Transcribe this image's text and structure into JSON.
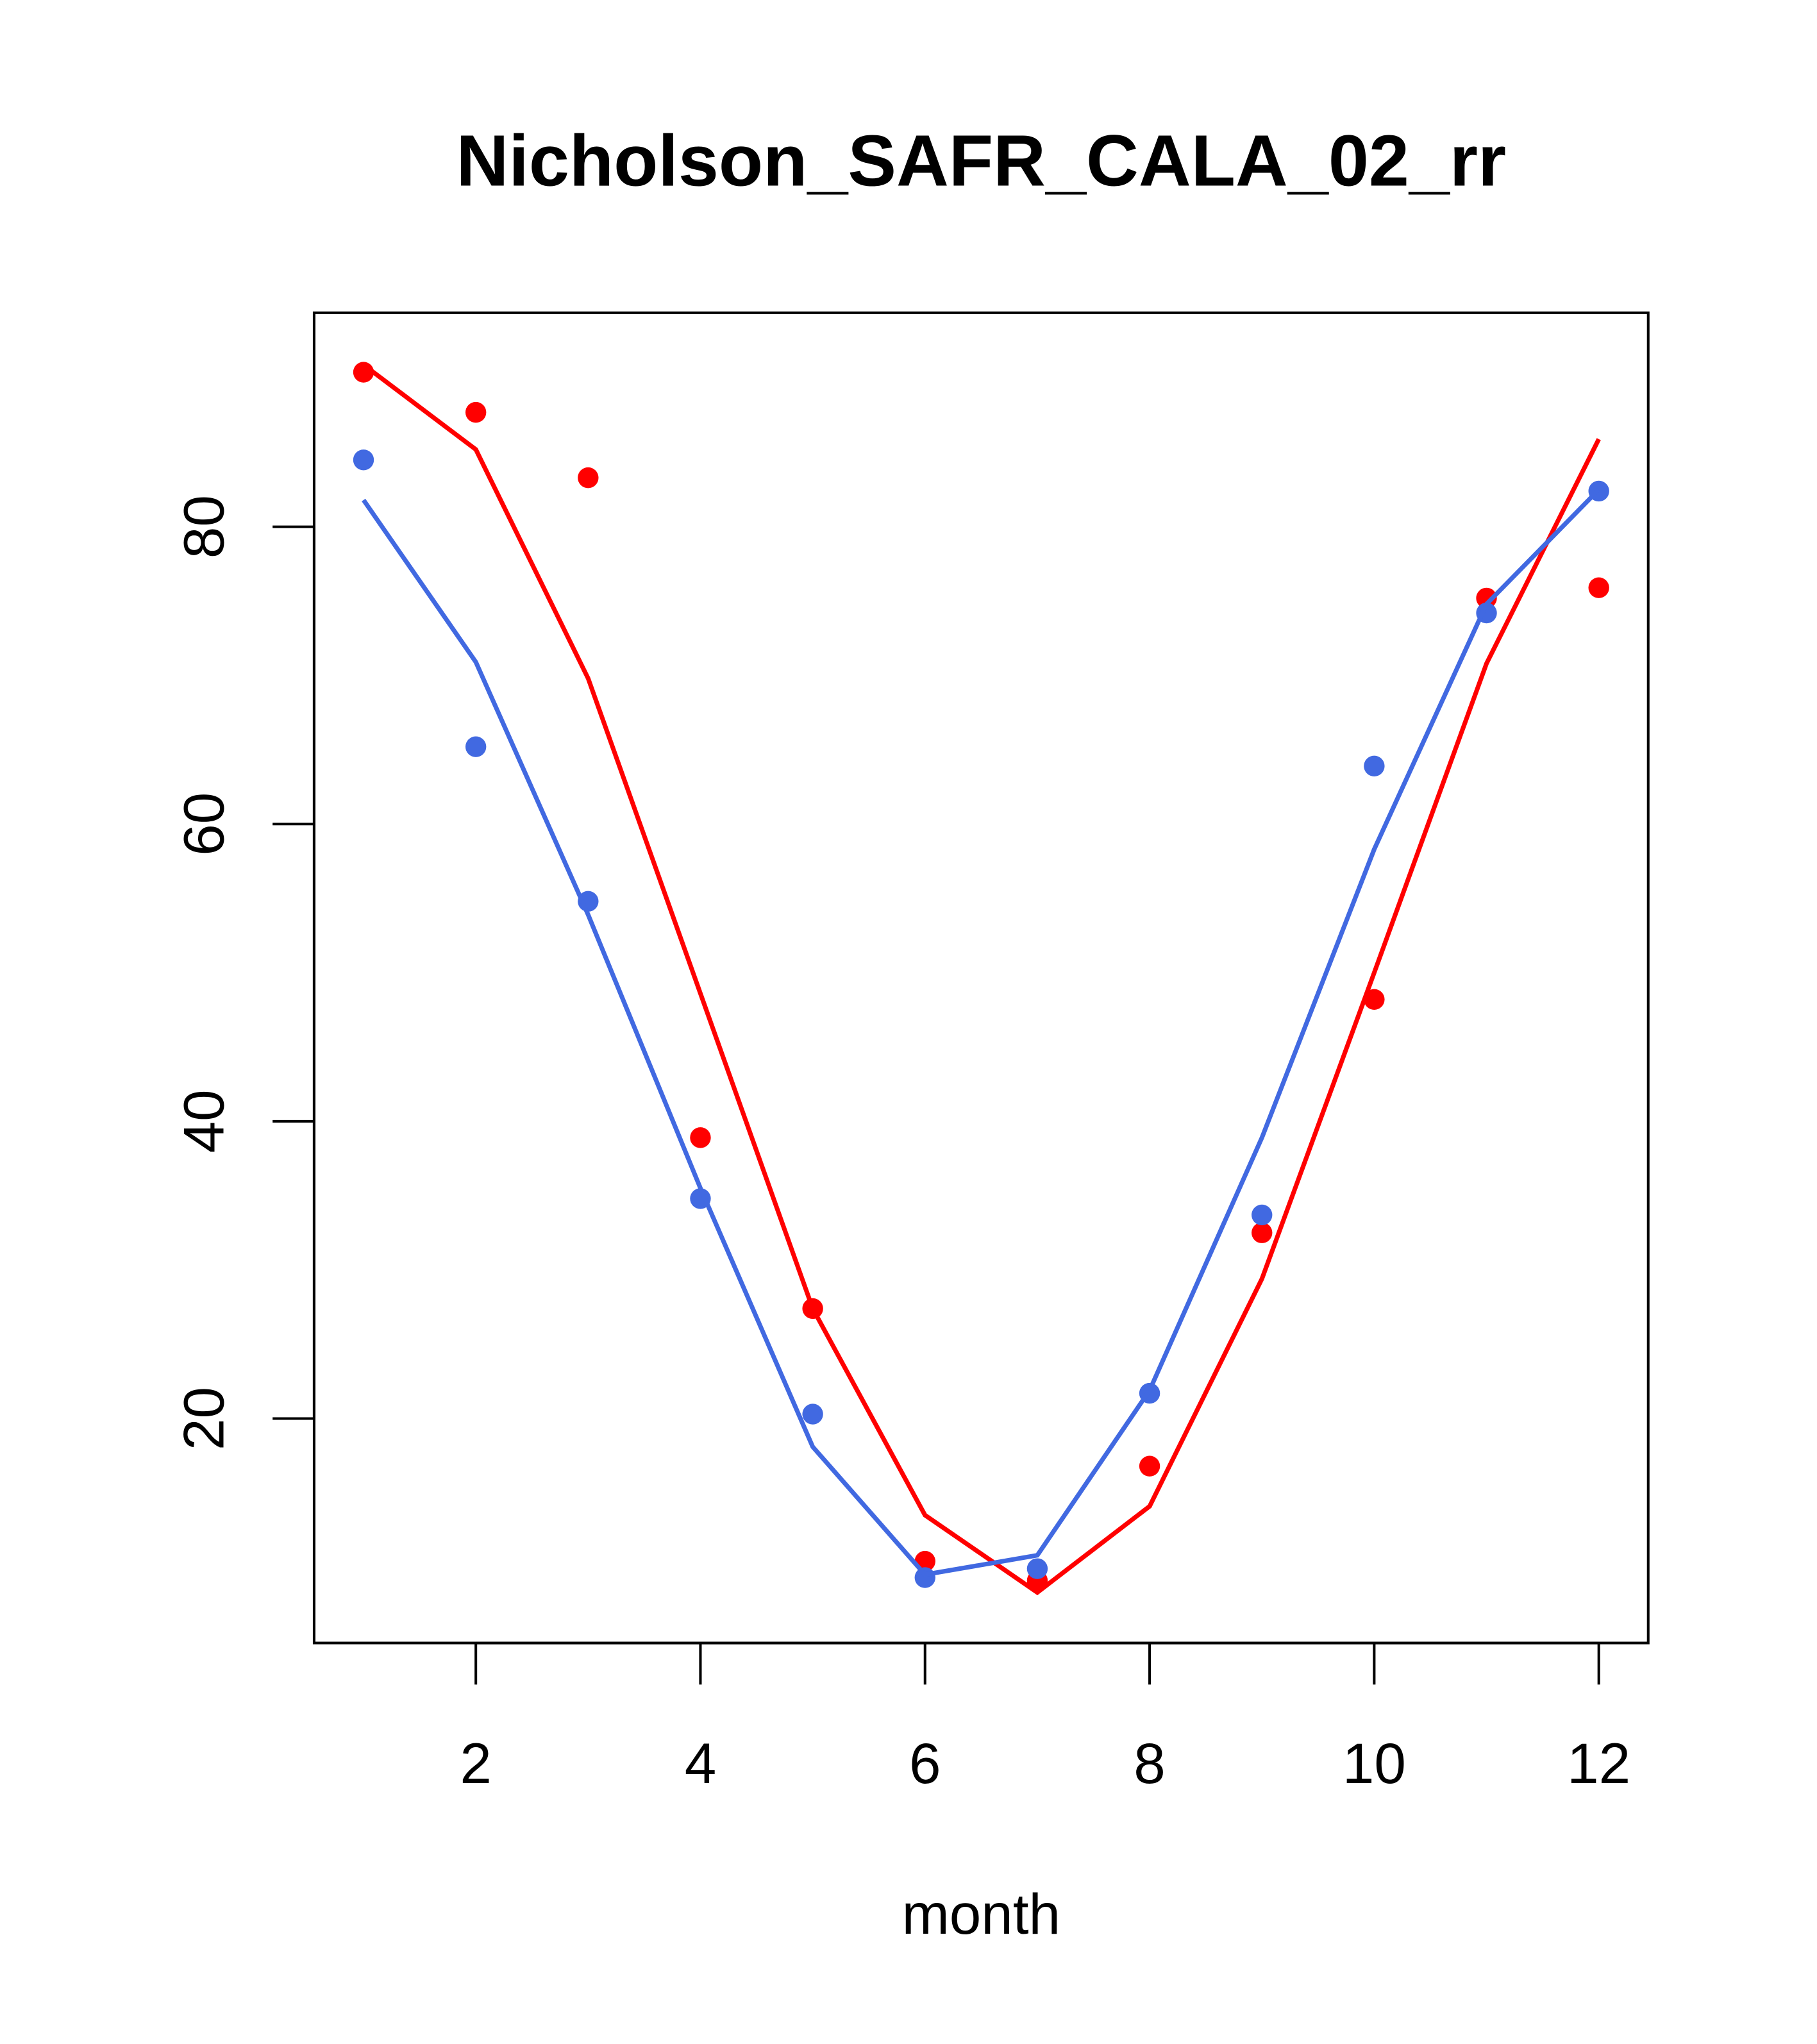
{
  "chart_data": {
    "type": "line",
    "title": "Nicholson_SAFR_CALA_02_rr",
    "xlabel": "month",
    "ylabel": "",
    "xlim": [
      0.56,
      12.44
    ],
    "ylim": [
      4.9,
      94.4
    ],
    "x_ticks": [
      2,
      4,
      6,
      8,
      10,
      12
    ],
    "y_ticks": [
      20,
      40,
      60,
      80
    ],
    "grid": false,
    "x": [
      1,
      2,
      3,
      4,
      5,
      6,
      7,
      8,
      9,
      10,
      11,
      12
    ],
    "series": [
      {
        "name": "red points",
        "kind": "points",
        "color": "#ff0000",
        "values": [
          90.4,
          87.7,
          83.3,
          38.9,
          27.4,
          10.4,
          9.1,
          16.8,
          32.5,
          48.2,
          75.2,
          75.9
        ]
      },
      {
        "name": "red line",
        "kind": "line",
        "color": "#ff0000",
        "values": [
          90.9,
          85.2,
          69.8,
          48.6,
          27.4,
          13.5,
          8.3,
          14.1,
          29.4,
          50.0,
          70.8,
          85.9
        ]
      },
      {
        "name": "blue points",
        "kind": "points",
        "color": "#4169e1",
        "values": [
          84.5,
          65.2,
          54.8,
          34.8,
          20.3,
          9.3,
          9.9,
          21.7,
          33.7,
          63.9,
          74.2,
          82.4
        ]
      },
      {
        "name": "blue line",
        "kind": "line",
        "color": "#4169e1",
        "values": [
          81.8,
          70.9,
          53.9,
          35.5,
          18.1,
          9.5,
          10.8,
          21.9,
          38.9,
          58.3,
          74.8,
          82.5
        ]
      }
    ]
  }
}
